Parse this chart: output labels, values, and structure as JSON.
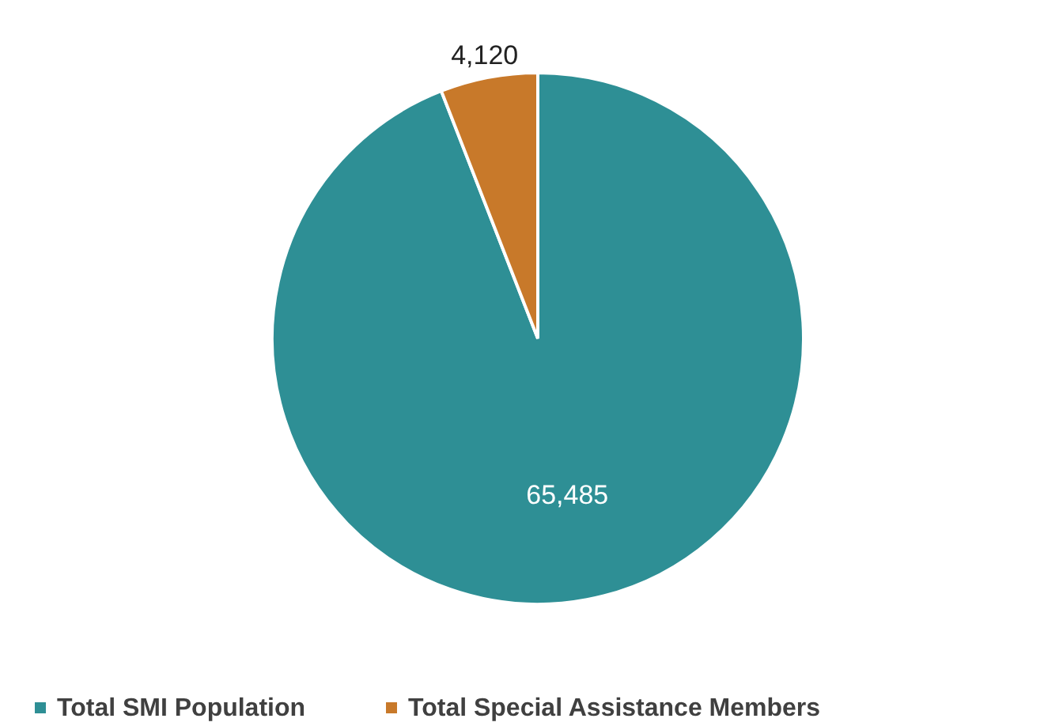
{
  "chart_data": {
    "type": "pie",
    "categories": [
      "Total SMI Population",
      "Total Special Assistance Members"
    ],
    "values": [
      65485,
      4120
    ],
    "colors": [
      "#2e8f95",
      "#c8792a"
    ],
    "value_labels": [
      "65,485",
      "4,120"
    ],
    "legend": "bottom"
  }
}
